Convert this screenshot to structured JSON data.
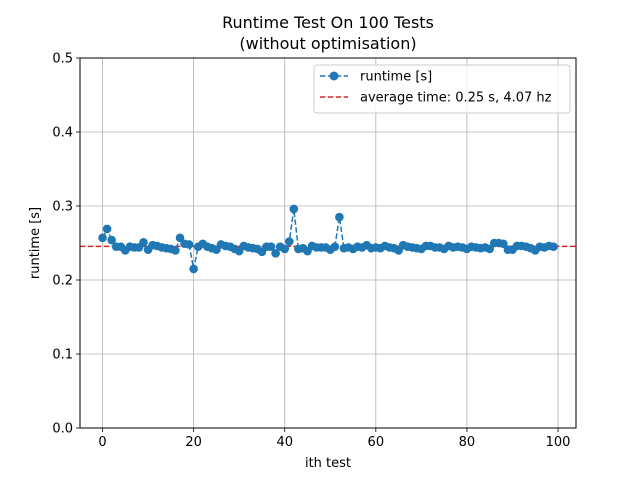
{
  "chart_data": {
    "type": "line",
    "title": "Runtime Test On 100 Tests",
    "subtitle": "(without optimisation)",
    "xlabel": "ith test",
    "ylabel": "runtime [s]",
    "xlim": [
      -4.95,
      103.95
    ],
    "ylim": [
      0,
      0.5
    ],
    "xticks": [
      0,
      20,
      40,
      60,
      80,
      100
    ],
    "yticks": [
      0.0,
      0.1,
      0.2,
      0.3,
      0.4,
      0.5
    ],
    "xtick_labels": [
      "0",
      "20",
      "40",
      "60",
      "80",
      "100"
    ],
    "ytick_labels": [
      "0.0",
      "0.1",
      "0.2",
      "0.3",
      "0.4",
      "0.5"
    ],
    "grid": true,
    "legend_position": "top-right",
    "series": [
      {
        "name": "runtime [s]",
        "color": "#1f77b4",
        "style": "dashed-with-circle-markers",
        "x": [
          0,
          1,
          2,
          3,
          4,
          5,
          6,
          7,
          8,
          9,
          10,
          11,
          12,
          13,
          14,
          15,
          16,
          17,
          18,
          19,
          20,
          21,
          22,
          23,
          24,
          25,
          26,
          27,
          28,
          29,
          30,
          31,
          32,
          33,
          34,
          35,
          36,
          37,
          38,
          39,
          40,
          41,
          42,
          43,
          44,
          45,
          46,
          47,
          48,
          49,
          50,
          51,
          52,
          53,
          54,
          55,
          56,
          57,
          58,
          59,
          60,
          61,
          62,
          63,
          64,
          65,
          66,
          67,
          68,
          69,
          70,
          71,
          72,
          73,
          74,
          75,
          76,
          77,
          78,
          79,
          80,
          81,
          82,
          83,
          84,
          85,
          86,
          87,
          88,
          89,
          90,
          91,
          92,
          93,
          94,
          95,
          96,
          97,
          98,
          99
        ],
        "values": [
          0.257,
          0.269,
          0.254,
          0.245,
          0.245,
          0.24,
          0.245,
          0.244,
          0.244,
          0.251,
          0.241,
          0.247,
          0.246,
          0.244,
          0.243,
          0.242,
          0.24,
          0.257,
          0.249,
          0.248,
          0.215,
          0.245,
          0.249,
          0.245,
          0.243,
          0.241,
          0.248,
          0.246,
          0.245,
          0.242,
          0.239,
          0.246,
          0.244,
          0.243,
          0.242,
          0.238,
          0.245,
          0.245,
          0.236,
          0.245,
          0.242,
          0.252,
          0.296,
          0.242,
          0.243,
          0.239,
          0.246,
          0.244,
          0.244,
          0.244,
          0.241,
          0.245,
          0.285,
          0.243,
          0.244,
          0.242,
          0.245,
          0.244,
          0.247,
          0.243,
          0.244,
          0.243,
          0.246,
          0.244,
          0.243,
          0.24,
          0.247,
          0.245,
          0.244,
          0.243,
          0.242,
          0.246,
          0.246,
          0.244,
          0.244,
          0.242,
          0.246,
          0.244,
          0.245,
          0.244,
          0.242,
          0.245,
          0.244,
          0.243,
          0.244,
          0.242,
          0.25,
          0.25,
          0.249,
          0.241,
          0.241,
          0.246,
          0.246,
          0.245,
          0.243,
          0.24,
          0.245,
          0.244,
          0.246,
          0.245
        ]
      },
      {
        "name": "average time: 0.25 s, 4.07 hz",
        "color": "#d62728",
        "style": "dashed",
        "hline": 0.2455
      }
    ]
  }
}
